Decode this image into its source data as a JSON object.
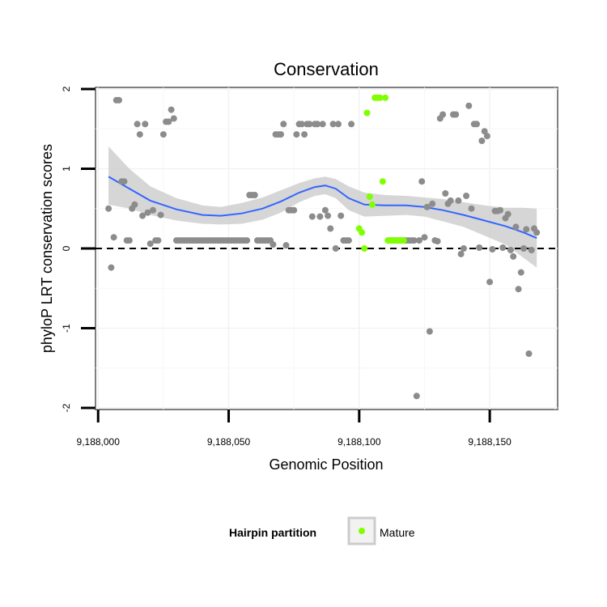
{
  "chart_data": {
    "type": "scatter",
    "title": "Conservation",
    "xlabel": "Genomic Position",
    "ylabel": "phyloP LRT conservation scores",
    "xlim": [
      9187999,
      9188176
    ],
    "ylim": [
      -2.02,
      2.02
    ],
    "x_ticks": [
      9188000,
      9188050,
      9188100,
      9188150
    ],
    "x_tick_labels": [
      "9,188,000",
      "9,188,050",
      "9,188,100",
      "9,188,150"
    ],
    "y_ticks": [
      -2,
      -1,
      0,
      1,
      2
    ],
    "y_tick_labels": [
      "-2",
      "-1",
      "0",
      "1",
      "2"
    ],
    "reference_line": {
      "y": 0,
      "style": "dashed"
    },
    "grid": true,
    "legend": {
      "title": "Hairpin partition",
      "position": "bottom",
      "entries": [
        {
          "label": "Mature",
          "color": "#7fff00"
        }
      ]
    },
    "colors": {
      "other": "#8c8c8c",
      "mature": "#7fff00",
      "smooth": "#3366ff",
      "band": "#c8c8c8"
    },
    "series": [
      {
        "name": "Other",
        "points": [
          [
            9188004,
            0.5
          ],
          [
            9188005,
            -0.24
          ],
          [
            9188006,
            0.14
          ],
          [
            9188007,
            1.86
          ],
          [
            9188008,
            1.86
          ],
          [
            9188009,
            0.84
          ],
          [
            9188010,
            0.84
          ],
          [
            9188011,
            0.1
          ],
          [
            9188012,
            0.1
          ],
          [
            9188013,
            0.5
          ],
          [
            9188014,
            0.55
          ],
          [
            9188015,
            1.56
          ],
          [
            9188016,
            1.43
          ],
          [
            9188017,
            0.41
          ],
          [
            9188018,
            1.56
          ],
          [
            9188019,
            0.45
          ],
          [
            9188020,
            0.06
          ],
          [
            9188021,
            0.48
          ],
          [
            9188022,
            0.1
          ],
          [
            9188023,
            0.1
          ],
          [
            9188024,
            0.42
          ],
          [
            9188025,
            1.43
          ],
          [
            9188026,
            1.59
          ],
          [
            9188027,
            1.59
          ],
          [
            9188028,
            1.74
          ],
          [
            9188029,
            1.63
          ],
          [
            9188030,
            0.1
          ],
          [
            9188031,
            0.1
          ],
          [
            9188032,
            0.1
          ],
          [
            9188033,
            0.1
          ],
          [
            9188034,
            0.1
          ],
          [
            9188035,
            0.1
          ],
          [
            9188036,
            0.1
          ],
          [
            9188037,
            0.1
          ],
          [
            9188038,
            0.1
          ],
          [
            9188039,
            0.1
          ],
          [
            9188040,
            0.1
          ],
          [
            9188041,
            0.1
          ],
          [
            9188042,
            0.1
          ],
          [
            9188043,
            0.1
          ],
          [
            9188044,
            0.1
          ],
          [
            9188045,
            0.1
          ],
          [
            9188046,
            0.1
          ],
          [
            9188047,
            0.1
          ],
          [
            9188048,
            0.1
          ],
          [
            9188049,
            0.1
          ],
          [
            9188050,
            0.1
          ],
          [
            9188051,
            0.1
          ],
          [
            9188052,
            0.1
          ],
          [
            9188053,
            0.1
          ],
          [
            9188054,
            0.1
          ],
          [
            9188055,
            0.1
          ],
          [
            9188056,
            0.1
          ],
          [
            9188057,
            0.1
          ],
          [
            9188058,
            0.67
          ],
          [
            9188059,
            0.67
          ],
          [
            9188060,
            0.67
          ],
          [
            9188061,
            0.1
          ],
          [
            9188062,
            0.1
          ],
          [
            9188063,
            0.1
          ],
          [
            9188064,
            0.1
          ],
          [
            9188065,
            0.1
          ],
          [
            9188066,
            0.1
          ],
          [
            9188067,
            0.05
          ],
          [
            9188068,
            1.43
          ],
          [
            9188069,
            1.43
          ],
          [
            9188070,
            1.43
          ],
          [
            9188071,
            1.56
          ],
          [
            9188072,
            0.04
          ],
          [
            9188073,
            0.48
          ],
          [
            9188074,
            0.48
          ],
          [
            9188075,
            0.48
          ],
          [
            9188076,
            1.43
          ],
          [
            9188077,
            1.56
          ],
          [
            9188078,
            1.56
          ],
          [
            9188079,
            1.43
          ],
          [
            9188080,
            1.56
          ],
          [
            9188081,
            1.56
          ],
          [
            9188082,
            0.4
          ],
          [
            9188083,
            1.56
          ],
          [
            9188084,
            1.56
          ],
          [
            9188085,
            0.4
          ],
          [
            9188086,
            1.56
          ],
          [
            9188087,
            0.48
          ],
          [
            9188088,
            0.41
          ],
          [
            9188089,
            0.25
          ],
          [
            9188090,
            1.56
          ],
          [
            9188091,
            0.0
          ],
          [
            9188092,
            1.56
          ],
          [
            9188093,
            0.41
          ],
          [
            9188094,
            0.1
          ],
          [
            9188095,
            0.1
          ],
          [
            9188096,
            0.1
          ],
          [
            9188097,
            1.56
          ],
          [
            9188112,
            0.1
          ],
          [
            9188113,
            0.1
          ],
          [
            9188114,
            0.1
          ],
          [
            9188115,
            0.1
          ],
          [
            9188116,
            0.1
          ],
          [
            9188117,
            0.1
          ],
          [
            9188118,
            0.1
          ],
          [
            9188119,
            0.1
          ],
          [
            9188120,
            0.1
          ],
          [
            9188121,
            0.1
          ],
          [
            9188122,
            -1.85
          ],
          [
            9188123,
            0.1
          ],
          [
            9188124,
            0.84
          ],
          [
            9188125,
            0.14
          ],
          [
            9188126,
            0.52
          ],
          [
            9188127,
            -1.04
          ],
          [
            9188128,
            0.56
          ],
          [
            9188129,
            0.1
          ],
          [
            9188130,
            0.09
          ],
          [
            9188131,
            1.63
          ],
          [
            9188132,
            1.68
          ],
          [
            9188133,
            0.69
          ],
          [
            9188134,
            0.56
          ],
          [
            9188135,
            0.6
          ],
          [
            9188136,
            1.68
          ],
          [
            9188137,
            1.68
          ],
          [
            9188138,
            0.6
          ],
          [
            9188139,
            -0.07
          ],
          [
            9188140,
            0.0
          ],
          [
            9188141,
            0.66
          ],
          [
            9188142,
            1.79
          ],
          [
            9188143,
            0.5
          ],
          [
            9188144,
            1.56
          ],
          [
            9188145,
            1.56
          ],
          [
            9188146,
            0.01
          ],
          [
            9188147,
            1.35
          ],
          [
            9188148,
            1.47
          ],
          [
            9188149,
            1.41
          ],
          [
            9188150,
            -0.42
          ],
          [
            9188151,
            -0.01
          ],
          [
            9188152,
            0.47
          ],
          [
            9188153,
            0.47
          ],
          [
            9188154,
            0.48
          ],
          [
            9188155,
            0.01
          ],
          [
            9188156,
            0.38
          ],
          [
            9188157,
            0.43
          ],
          [
            9188158,
            -0.02
          ],
          [
            9188159,
            -0.1
          ],
          [
            9188160,
            0.27
          ],
          [
            9188161,
            -0.51
          ],
          [
            9188162,
            -0.3
          ],
          [
            9188163,
            0.0
          ],
          [
            9188164,
            0.24
          ],
          [
            9188165,
            -1.32
          ],
          [
            9188166,
            -0.02
          ],
          [
            9188167,
            0.25
          ],
          [
            9188168,
            0.2
          ]
        ]
      },
      {
        "name": "Mature",
        "points": [
          [
            9188100,
            0.25
          ],
          [
            9188101,
            0.2
          ],
          [
            9188102,
            0.0
          ],
          [
            9188103,
            1.7
          ],
          [
            9188104,
            0.65
          ],
          [
            9188105,
            0.55
          ],
          [
            9188106,
            1.89
          ],
          [
            9188107,
            1.89
          ],
          [
            9188108,
            1.89
          ],
          [
            9188109,
            0.84
          ],
          [
            9188110,
            1.89
          ],
          [
            9188111,
            0.1
          ],
          [
            9188112,
            0.1
          ],
          [
            9188113,
            0.1
          ],
          [
            9188114,
            0.1
          ],
          [
            9188115,
            0.1
          ],
          [
            9188116,
            0.1
          ],
          [
            9188117,
            0.1
          ]
        ]
      }
    ],
    "smooth": {
      "x": [
        9188004,
        9188012,
        9188020,
        9188030,
        9188040,
        9188047,
        9188055,
        9188063,
        9188070,
        9188077,
        9188083,
        9188087,
        9188091,
        9188096,
        9188102,
        9188110,
        9188118,
        9188125,
        9188132,
        9188140,
        9188148,
        9188156,
        9188163,
        9188168
      ],
      "y": [
        0.9,
        0.75,
        0.6,
        0.49,
        0.42,
        0.41,
        0.44,
        0.5,
        0.59,
        0.7,
        0.77,
        0.79,
        0.75,
        0.63,
        0.55,
        0.54,
        0.54,
        0.52,
        0.48,
        0.42,
        0.35,
        0.28,
        0.2,
        0.13
      ],
      "lower": [
        0.55,
        0.5,
        0.42,
        0.35,
        0.31,
        0.3,
        0.31,
        0.36,
        0.45,
        0.58,
        0.66,
        0.68,
        0.63,
        0.48,
        0.4,
        0.41,
        0.42,
        0.4,
        0.34,
        0.27,
        0.16,
        0.05,
        -0.12,
        -0.24
      ],
      "upper": [
        1.28,
        1.0,
        0.78,
        0.63,
        0.54,
        0.52,
        0.57,
        0.64,
        0.73,
        0.82,
        0.88,
        0.9,
        0.87,
        0.78,
        0.7,
        0.67,
        0.66,
        0.64,
        0.62,
        0.58,
        0.54,
        0.51,
        0.51,
        0.5
      ]
    }
  }
}
